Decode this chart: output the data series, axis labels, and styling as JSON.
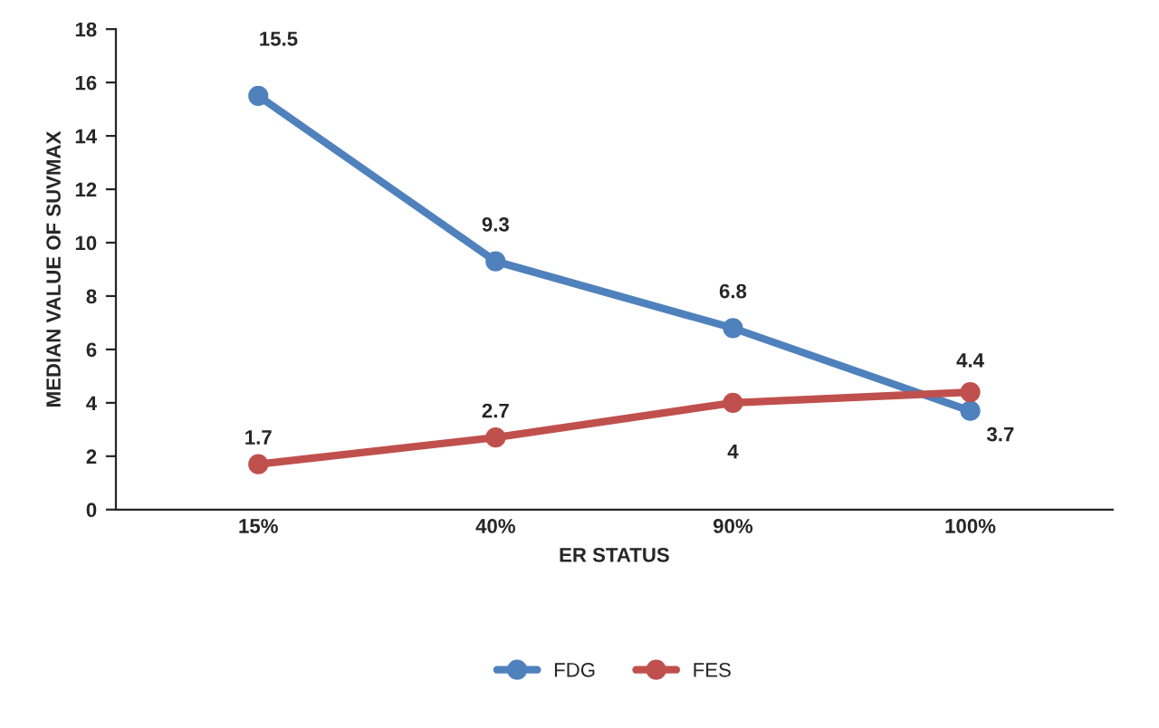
{
  "chart_data": {
    "type": "line",
    "xlabel": "ER STATUS",
    "ylabel": "MEDIAN VALUE OF SUVMAX",
    "categories": [
      "15%",
      "40%",
      "90%",
      "100%"
    ],
    "series": [
      {
        "name": "FDG",
        "color": "#4f81bd",
        "values": [
          15.5,
          9.3,
          6.8,
          3.7
        ]
      },
      {
        "name": "FES",
        "color": "#c0504d",
        "values": [
          1.7,
          2.7,
          4,
          4.4
        ]
      }
    ],
    "ylim": [
      0,
      18
    ],
    "yticks": [
      0,
      2,
      4,
      6,
      8,
      10,
      12,
      14,
      16,
      18
    ],
    "grid": false,
    "legend": "bottom",
    "marker": "circle",
    "line_style": "solid",
    "data_labels": true
  }
}
